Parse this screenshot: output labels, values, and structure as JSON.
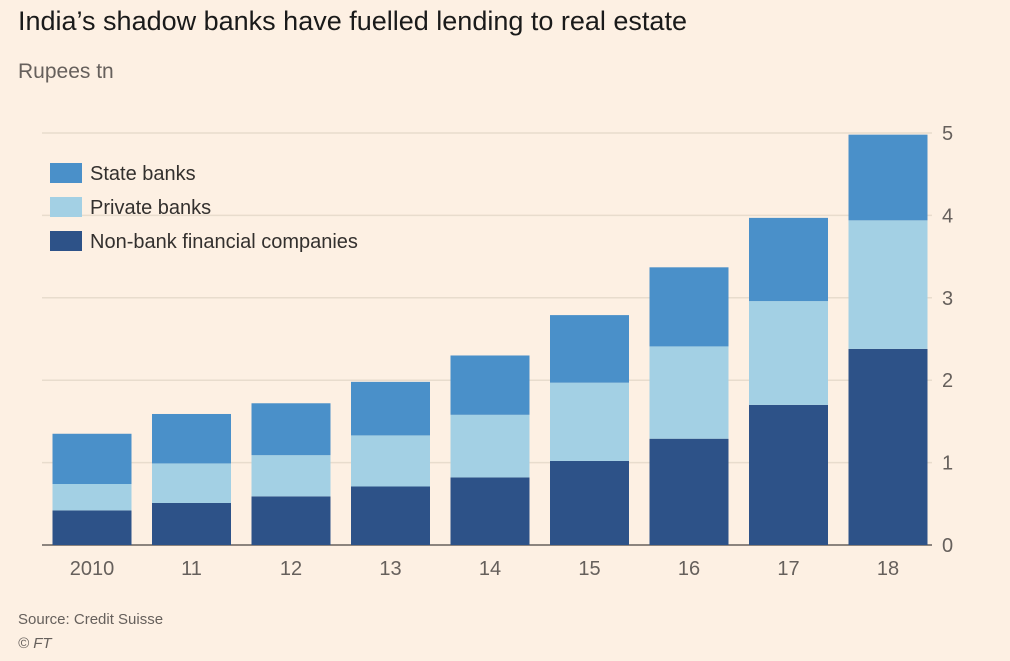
{
  "title": "India’s shadow banks have fuelled lending to real estate",
  "subtitle": "Rupees tn",
  "source": "Source: Credit Suisse",
  "copyright": "© FT",
  "chart_data": {
    "type": "bar",
    "stacked": true,
    "categories": [
      "2010",
      "11",
      "12",
      "13",
      "14",
      "15",
      "16",
      "17",
      "18"
    ],
    "series": [
      {
        "name": "Non-bank financial companies",
        "color": "#2d5288",
        "values": [
          0.42,
          0.51,
          0.59,
          0.71,
          0.82,
          1.02,
          1.29,
          1.7,
          2.38
        ]
      },
      {
        "name": "Private banks",
        "color": "#a3d0e4",
        "values": [
          0.32,
          0.48,
          0.5,
          0.62,
          0.76,
          0.95,
          1.12,
          1.26,
          1.56
        ]
      },
      {
        "name": "State banks",
        "color": "#4a90c9",
        "values": [
          0.61,
          0.6,
          0.63,
          0.65,
          0.72,
          0.82,
          0.96,
          1.01,
          1.04
        ]
      }
    ],
    "legend_order": [
      "State banks",
      "Private banks",
      "Non-bank financial companies"
    ],
    "y_ticks": [
      "0",
      "1",
      "2",
      "3",
      "4",
      "5"
    ],
    "ylim": [
      0,
      5
    ],
    "grid": true,
    "y_axis_side": "right",
    "legend_position": "top-left"
  }
}
